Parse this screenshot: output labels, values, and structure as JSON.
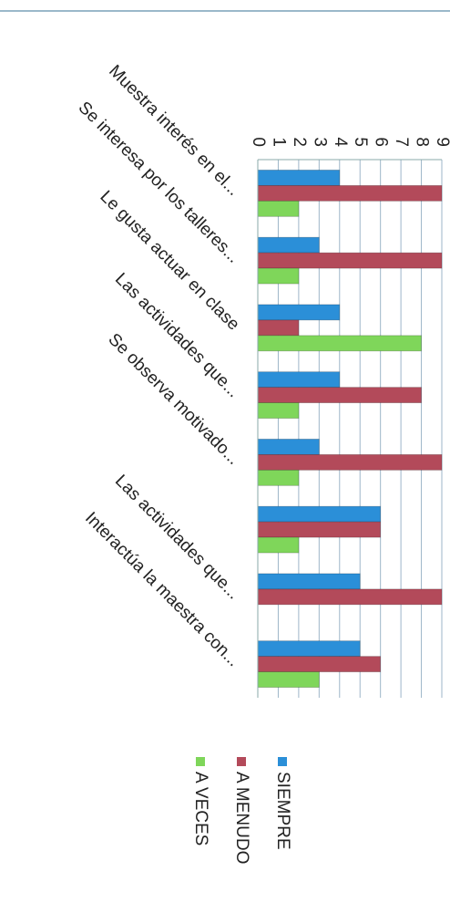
{
  "chart_data": {
    "type": "bar",
    "categories": [
      "Muestra interés en el...",
      "Se interesa por los talleres...",
      "Le gusta actuar en clase",
      "Las actividades que...",
      "Se observa motivado...",
      null,
      "Las actividades que...",
      "Interactúa la maestra con..."
    ],
    "series": [
      {
        "name": "SIEMPRE",
        "color": "#2b8fd8",
        "values": [
          4,
          3,
          4,
          4,
          3,
          6,
          5,
          5
        ]
      },
      {
        "name": "A MENUDO",
        "color": "#b34a5a",
        "values": [
          9,
          9,
          2,
          8,
          9,
          6,
          9,
          6
        ]
      },
      {
        "name": "A VECES",
        "color": "#7fd65a",
        "values": [
          2,
          2,
          8,
          2,
          2,
          2,
          0,
          3
        ]
      }
    ],
    "ylim": [
      0,
      9
    ],
    "yticks": [
      0,
      1,
      2,
      3,
      4,
      5,
      6,
      7,
      8,
      9
    ],
    "grid": true,
    "legend": "right"
  }
}
